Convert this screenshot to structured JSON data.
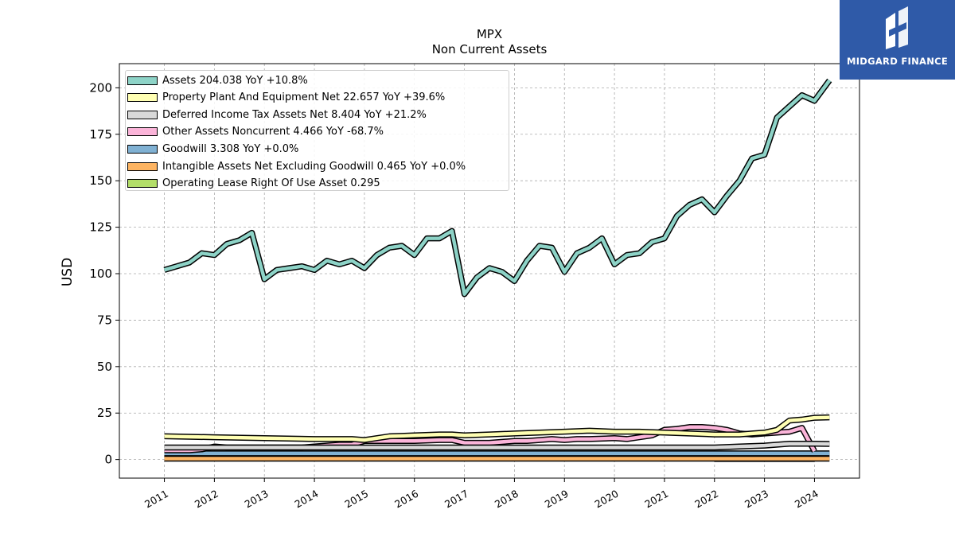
{
  "logo": {
    "text": "MIDGARD FINANCE",
    "icon": "midgard-logo-icon"
  },
  "header": {
    "title": "MPX",
    "subtitle": "Non Current  Assets"
  },
  "colors": {
    "assets": "#8dd3c7",
    "ppe": "#ffffb3",
    "deferred": "#d9d9d9",
    "other": "#fbb4d9",
    "goodwill": "#80b1d3",
    "intangible": "#fdb462",
    "lease": "#b3de69",
    "logo_bg": "#2f5aa8"
  },
  "chart_data": {
    "type": "line",
    "title": "MPX",
    "subtitle": "Non Current  Assets",
    "ylabel": "USD",
    "ylim": [
      -10,
      213
    ],
    "xlim": [
      2010.1,
      2024.9
    ],
    "grid": true,
    "legend_position": "top-left",
    "yticks": [
      "0",
      "25",
      "50",
      "75",
      "100",
      "125",
      "150",
      "175",
      "200"
    ],
    "xticks": [
      "2011",
      "2012",
      "2013",
      "2014",
      "2015",
      "2016",
      "2017",
      "2018",
      "2019",
      "2020",
      "2021",
      "2022",
      "2023",
      "2024"
    ],
    "legend": [
      "Assets  204.038 YoY +10.8%",
      "Property Plant And Equipment Net  22.657 YoY +39.6%",
      "Deferred Income Tax Assets Net  8.404 YoY +21.2%",
      "Other Assets Noncurrent  4.466 YoY -68.7%",
      "Goodwill  3.308 YoY +0.0%",
      "Intangible Assets Net Excluding Goodwill  0.465 YoY +0.0%",
      "Operating Lease Right Of Use Asset  0.295"
    ],
    "series": [
      {
        "name": "Assets",
        "color": "#8dd3c7",
        "width": 4.5,
        "x": [
          2011.0,
          2011.25,
          2011.5,
          2011.75,
          2012.0,
          2012.25,
          2012.5,
          2012.75,
          2013.0,
          2013.25,
          2013.5,
          2013.75,
          2014.0,
          2014.25,
          2014.5,
          2014.75,
          2015.0,
          2015.25,
          2015.5,
          2015.75,
          2016.0,
          2016.25,
          2016.5,
          2016.75,
          2017.0,
          2017.25,
          2017.5,
          2017.75,
          2018.0,
          2018.25,
          2018.5,
          2018.75,
          2019.0,
          2019.25,
          2019.5,
          2019.75,
          2020.0,
          2020.25,
          2020.5,
          2020.75,
          2021.0,
          2021.25,
          2021.5,
          2021.75,
          2022.0,
          2022.25,
          2022.5,
          2022.75,
          2023.0,
          2023.25,
          2023.5,
          2023.75,
          2024.0,
          2024.3
        ],
        "y": [
          102,
          104,
          106,
          111,
          110,
          116,
          118,
          122,
          97,
          102,
          103,
          104,
          102,
          107,
          105,
          107,
          103,
          110,
          114,
          115,
          110,
          119,
          119,
          123,
          89,
          98,
          103,
          101,
          96,
          107,
          115,
          114,
          101,
          111,
          114,
          119,
          105,
          110,
          111,
          117,
          119,
          131,
          137,
          140,
          133,
          142,
          150,
          162,
          164,
          184,
          190,
          196,
          193,
          204
        ]
      },
      {
        "name": "Property Plant And Equipment Net",
        "color": "#ffffb3",
        "width": 4.5,
        "x": [
          2011.0,
          2012.0,
          2013.0,
          2014.0,
          2014.75,
          2015.0,
          2015.5,
          2016.0,
          2016.5,
          2016.75,
          2017.0,
          2017.5,
          2018.0,
          2018.5,
          2019.0,
          2019.5,
          2020.0,
          2020.5,
          2021.0,
          2021.5,
          2022.0,
          2022.5,
          2022.75,
          2023.0,
          2023.25,
          2023.5,
          2023.75,
          2024.0,
          2024.3
        ],
        "y": [
          12.5,
          12,
          11.5,
          11,
          11,
          10.5,
          12.5,
          13,
          13.5,
          13.5,
          13,
          13.5,
          14,
          14.5,
          15,
          15.5,
          15,
          15,
          14.5,
          14,
          13.5,
          13.5,
          14,
          14.5,
          16,
          21,
          21.5,
          22.5,
          22.7
        ]
      },
      {
        "name": "Deferred Income Tax Assets Net",
        "color": "#d9d9d9",
        "width": 4.5,
        "x": [
          2011.0,
          2012.0,
          2013.0,
          2014.0,
          2015.0,
          2016.0,
          2017.0,
          2018.0,
          2019.0,
          2020.0,
          2021.0,
          2022.0,
          2022.5,
          2023.0,
          2023.5,
          2024.0,
          2024.3
        ],
        "y": [
          6.5,
          6.5,
          6.5,
          6.5,
          6.5,
          6.5,
          6.5,
          6.5,
          6.5,
          6.5,
          6.5,
          6.5,
          7,
          7.5,
          8.5,
          8.5,
          8.4
        ]
      },
      {
        "name": "Other Assets Noncurrent",
        "color": "#fbb4d9",
        "width": 4.5,
        "x": [
          2011.0,
          2011.5,
          2011.75,
          2012.0,
          2012.25,
          2012.5,
          2013.0,
          2013.5,
          2013.75,
          2014.0,
          2014.5,
          2014.75,
          2015.0,
          2015.5,
          2016.0,
          2016.5,
          2016.75,
          2017.0,
          2017.5,
          2018.0,
          2018.25,
          2018.5,
          2018.75,
          2019.0,
          2019.25,
          2019.5,
          2020.0,
          2020.25,
          2020.5,
          2020.75,
          2021.0,
          2021.25,
          2021.5,
          2021.75,
          2022.0,
          2022.25,
          2022.5,
          2022.75,
          2023.0,
          2023.25,
          2023.5,
          2023.75,
          2024.0
        ],
        "y": [
          5,
          5,
          5.5,
          7,
          6.5,
          6.5,
          6.5,
          6.5,
          6.5,
          7,
          8,
          8,
          10,
          10,
          10,
          10.5,
          10.5,
          9,
          9,
          10,
          10,
          10.5,
          11,
          10.5,
          11,
          11,
          11.5,
          11,
          12,
          13,
          16,
          16.5,
          17.5,
          17.5,
          17,
          16,
          14,
          13.5,
          14,
          14.5,
          15,
          17,
          4.5
        ]
      },
      {
        "name": "Goodwill",
        "color": "#80b1d3",
        "width": 4.5,
        "x": [
          2011.0,
          2024.3
        ],
        "y": [
          3.3,
          3.3
        ]
      },
      {
        "name": "Intangible Assets Net Excluding Goodwill",
        "color": "#fdb462",
        "width": 4.5,
        "x": [
          2011.0,
          2024.3
        ],
        "y": [
          0.5,
          0.5
        ]
      },
      {
        "name": "Operating Lease Right Of Use Asset",
        "color": "#b3de69",
        "width": 4.5,
        "x": [
          2022.0,
          2024.0
        ],
        "y": [
          0.3,
          0.3
        ]
      }
    ]
  }
}
